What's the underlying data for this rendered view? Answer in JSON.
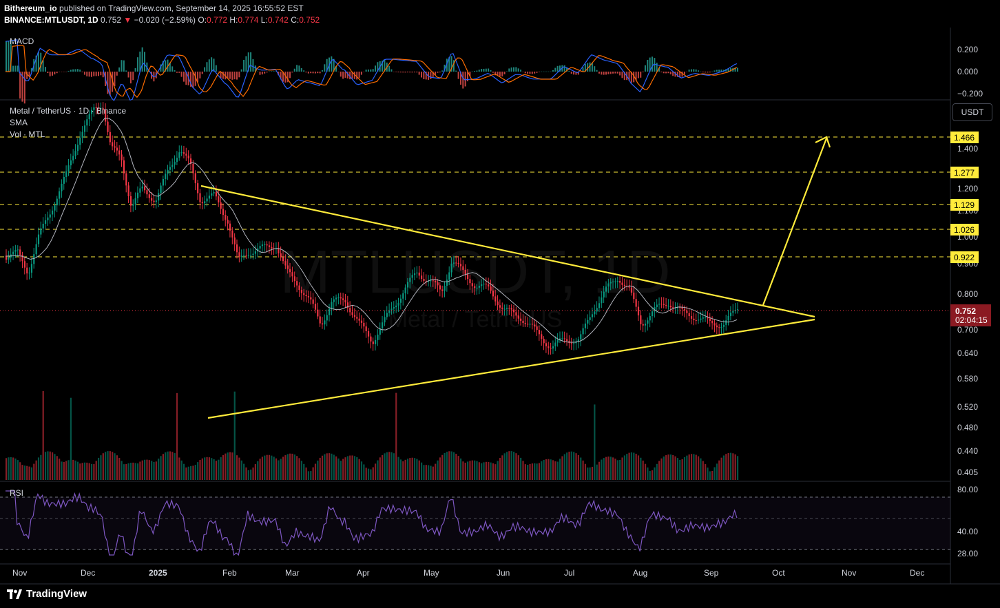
{
  "header": {
    "publisher": "Bithereum_io",
    "published_text": " published on TradingView.com, September 14, 2025 16:55:52 EST",
    "symbol_line": "BINANCE:MTLUSDT, 1D",
    "last": "0.752",
    "change": "−0.020 (−2.59%)",
    "o_label": "O:",
    "o": "0.772",
    "h_label": "H:",
    "h": "0.774",
    "l_label": "L:",
    "l": "0.742",
    "c_label": "C:",
    "c": "0.752"
  },
  "macd_pane": {
    "title": "MACD",
    "ticks": [
      "0.200",
      "0.000",
      "−0.200"
    ]
  },
  "price_pane": {
    "legend_title": "Metal / TetherUS · 1D · Binance",
    "legend_sma": "SMA",
    "legend_vol": "Vol · MTL",
    "currency_button": "USDT",
    "watermark_main": "MTLUSDT, 1D",
    "watermark_sub": "Metal / TetherUS",
    "ticks": [
      "1.400",
      "1.200",
      "1.100",
      "1.000",
      "0.900",
      "0.800",
      "0.700",
      "0.640",
      "0.580",
      "0.520",
      "0.480",
      "0.440",
      "0.405"
    ],
    "level_labels": [
      "1.466",
      "1.277",
      "1.129",
      "1.026",
      "0.922"
    ],
    "last_price_label": "0.752",
    "countdown": "02:04:15"
  },
  "rsi_pane": {
    "title": "RSI",
    "ticks": [
      "80.00",
      "40.00",
      "28.00"
    ]
  },
  "time_axis": [
    "Nov",
    "Dec",
    "2025",
    "Feb",
    "Mar",
    "Apr",
    "May",
    "Jun",
    "Jul",
    "Aug",
    "Sep",
    "Oct",
    "Nov",
    "Dec"
  ],
  "footer": {
    "brand": "TradingView"
  },
  "colors": {
    "up": "#089981",
    "down": "#f23645",
    "accent": "#ffeb3b",
    "sma": "#b2b5be",
    "rsi": "#7e57c2",
    "macd": "#2962ff",
    "signal": "#ff6d00"
  }
}
